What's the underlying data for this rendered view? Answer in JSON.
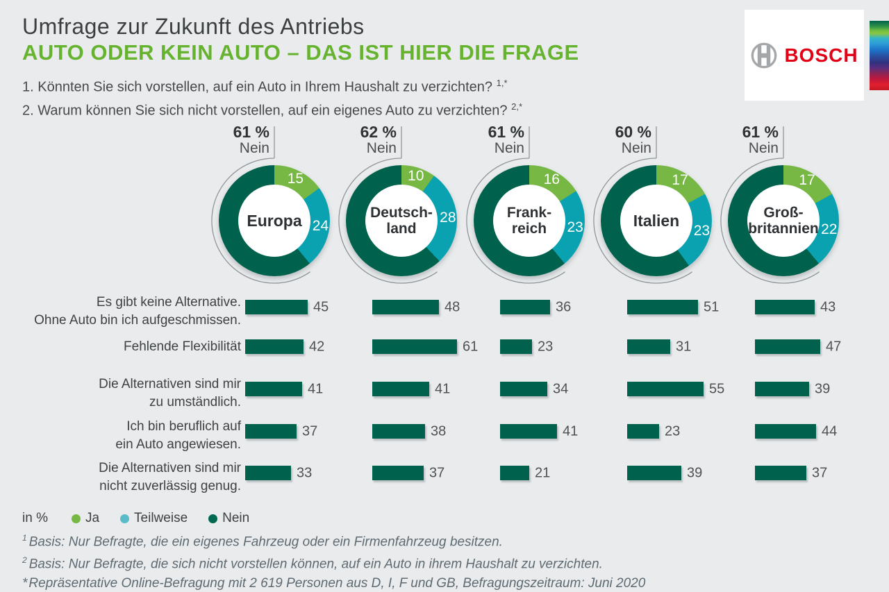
{
  "header": {
    "surtitle": "Umfrage zur Zukunft des Antriebs",
    "title": "AUTO ODER KEIN AUTO – DAS IST HIER DIE FRAGE",
    "title_color": "#65B32E",
    "questions": [
      {
        "text": "1. Könnten Sie sich vorstellen, auf ein Auto in Ihrem Haushalt zu verzichten?",
        "sup": "1,*"
      },
      {
        "text": "2. Warum können Sie sich nicht vorstellen, auf ein eigenes Auto zu verzichten?",
        "sup": "2,*"
      }
    ]
  },
  "logo": {
    "brand": "BOSCH",
    "brand_color": "#E20015",
    "symbol": "bosch-armature"
  },
  "legend": {
    "unit_label": "in %",
    "items": [
      {
        "label": "Ja",
        "color": "#76B843"
      },
      {
        "label": "Teilweise",
        "color": "#5ABCC8"
      },
      {
        "label": "Nein",
        "color": "#006950"
      }
    ]
  },
  "footnotes": [
    {
      "marker": "1",
      "superscript": true,
      "text": "Basis: Nur Befragte, die ein eigenes Fahrzeug oder ein Firmenfahrzeug besitzen."
    },
    {
      "marker": "2",
      "superscript": true,
      "text": "Basis: Nur Befragte, die sich nicht vorstellen können, auf ein Auto in ihrem Haushalt zu verzichten."
    },
    {
      "marker": "*",
      "superscript": false,
      "text": "Repräsentative Online-Befragung mit 2 619 Personen aus D, I, F und GB, Befragungszeitraum: Juni 2020"
    }
  ],
  "chart_data": [
    {
      "type": "pie",
      "variant": "donut",
      "question": "1",
      "unit": "%",
      "categories": [
        "Ja",
        "Teilweise",
        "Nein"
      ],
      "colors": {
        "Ja": "#76B843",
        "Teilweise": "#0AA2B0",
        "Nein": "#00624C"
      },
      "series": [
        {
          "name": "Europa",
          "name_lines": [
            "Europa"
          ],
          "values": [
            15,
            24,
            61
          ],
          "callout_value": "61 %",
          "callout_label": "Nein"
        },
        {
          "name": "Deutschland",
          "name_lines": [
            "Deutsch-",
            "land"
          ],
          "values": [
            10,
            28,
            62
          ],
          "callout_value": "62 %",
          "callout_label": "Nein"
        },
        {
          "name": "Frankreich",
          "name_lines": [
            "Frank-",
            "reich"
          ],
          "values": [
            16,
            23,
            61
          ],
          "callout_value": "61 %",
          "callout_label": "Nein"
        },
        {
          "name": "Italien",
          "name_lines": [
            "Italien"
          ],
          "values": [
            17,
            23,
            60
          ],
          "callout_value": "60 %",
          "callout_label": "Nein"
        },
        {
          "name": "Großbritannien",
          "name_lines": [
            "Groß-",
            "britannien"
          ],
          "values": [
            17,
            22,
            61
          ],
          "callout_value": "61 %",
          "callout_label": "Nein"
        }
      ]
    },
    {
      "type": "bar",
      "question": "2",
      "orientation": "horizontal",
      "unit": "%",
      "bar_color": "#00624C",
      "xlim": [
        0,
        61
      ],
      "categories": [
        [
          "Es gibt keine Alternative.",
          "Ohne Auto bin ich aufgeschmissen."
        ],
        [
          "Fehlende Flexibilität"
        ],
        [
          "Die Alternativen sind mir",
          "zu umständlich."
        ],
        [
          "Ich bin beruflich auf",
          "ein Auto angewiesen."
        ],
        [
          "Die Alternativen sind mir",
          "nicht zuverlässig genug."
        ]
      ],
      "series": [
        {
          "name": "Europa",
          "values": [
            45,
            42,
            41,
            37,
            33
          ]
        },
        {
          "name": "Deutschland",
          "values": [
            48,
            61,
            41,
            38,
            37
          ]
        },
        {
          "name": "Frankreich",
          "values": [
            36,
            23,
            34,
            41,
            21
          ]
        },
        {
          "name": "Italien",
          "values": [
            51,
            31,
            55,
            23,
            39
          ]
        },
        {
          "name": "Großbritannien",
          "values": [
            43,
            47,
            39,
            44,
            37
          ]
        }
      ]
    }
  ]
}
